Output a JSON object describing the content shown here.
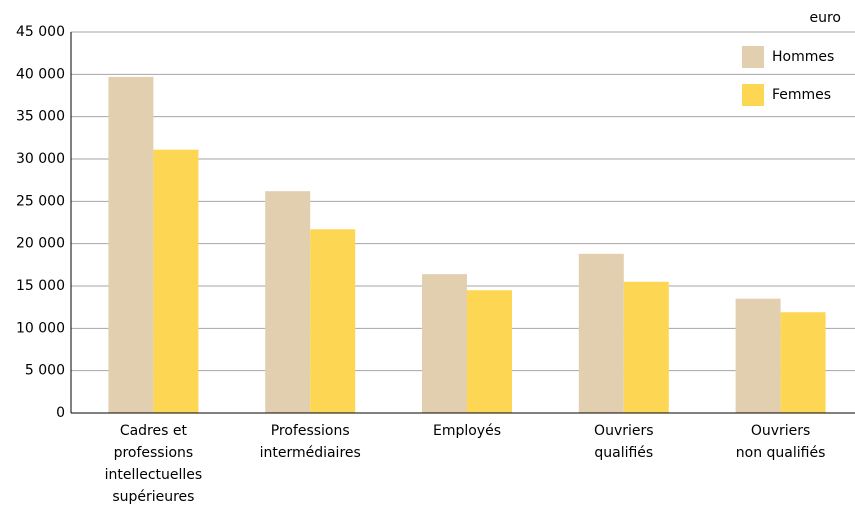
{
  "chart_data": {
    "type": "bar",
    "unit_label": "euro",
    "categories": [
      [
        "Cadres et",
        "professions",
        "intellectuelles",
        "supérieures"
      ],
      [
        "Professions",
        "intermédiaires"
      ],
      [
        "Employés"
      ],
      [
        "Ouvriers",
        "qualifiés"
      ],
      [
        "Ouvriers",
        "non qualifiés"
      ]
    ],
    "series": [
      {
        "name": "Hommes",
        "color": "#e2cfb0",
        "values": [
          39700,
          26200,
          16400,
          18800,
          13500
        ]
      },
      {
        "name": "Femmes",
        "color": "#fdd753",
        "values": [
          31100,
          21700,
          14500,
          15500,
          11900
        ]
      }
    ],
    "ylim": [
      0,
      45000
    ],
    "yticks": [
      0,
      {
        "value": 5000,
        "label": "5 000"
      },
      {
        "value": 10000,
        "label": "10 000"
      },
      {
        "value": 15000,
        "label": "15 000"
      },
      {
        "value": 20000,
        "label": "20 000"
      },
      {
        "value": 25000,
        "label": "25 000"
      },
      {
        "value": 30000,
        "label": "30 000"
      },
      {
        "value": 35000,
        "label": "35 000"
      },
      {
        "value": 40000,
        "label": "40 000"
      },
      {
        "value": 45000,
        "label": "45 000"
      }
    ],
    "grid": true,
    "legend": "top-right"
  }
}
